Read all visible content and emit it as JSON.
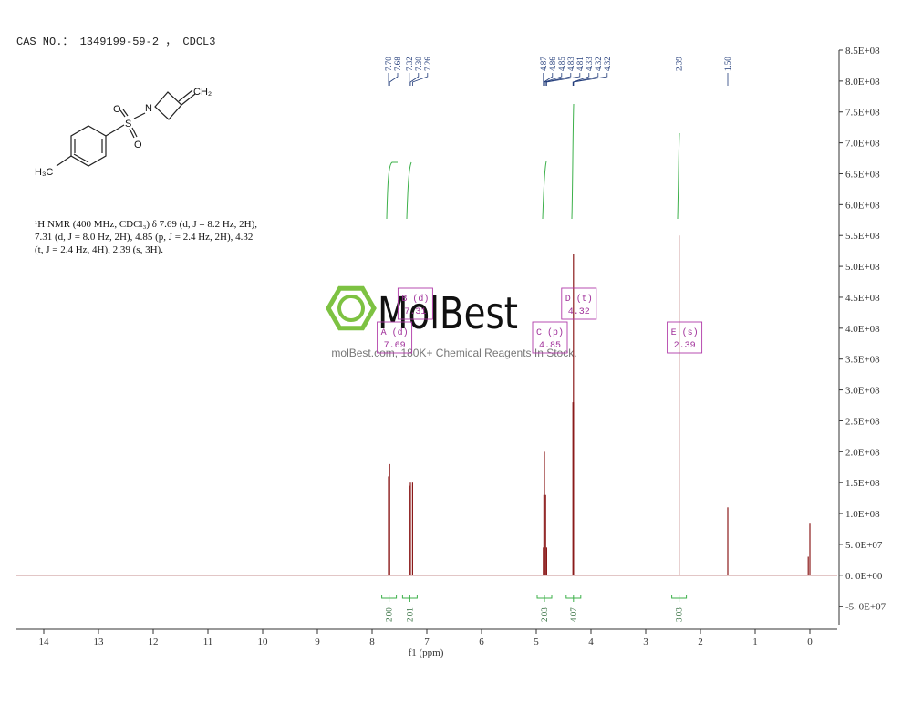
{
  "header": {
    "cas": "CAS NO.： 1349199-59-2 ， CDCL3"
  },
  "structure": {
    "atoms": [
      "O",
      "S",
      "O",
      "N",
      "CH₂",
      "H₃C"
    ]
  },
  "description": {
    "lines": [
      "¹H NMR (400 MHz, CDCl₃) δ 7.69 (d, J = 8.2 Hz, 2H),",
      "7.31 (d, J = 8.0 Hz, 2H), 4.85 (p, J = 2.4 Hz, 2H), 4.32",
      "(t, J = 2.4 Hz, 4H), 2.39 (s, 3H)."
    ]
  },
  "watermark": {
    "brand": "MolBest",
    "tagline": "molBest.com, 180K+ Chemical Reagents In Stock."
  },
  "chart_data": {
    "type": "nmr",
    "x_label": "f1 (ppm)",
    "xlim": [
      14.5,
      -0.5
    ],
    "xticks": [
      14,
      13,
      12,
      11,
      10,
      9,
      8,
      7,
      6,
      5,
      4,
      3,
      2,
      1,
      0
    ],
    "ylim": [
      -80000000,
      850000000
    ],
    "yticks": [
      {
        "value": -50000000,
        "label": "-5. 0E+07"
      },
      {
        "value": 0,
        "label": "0. 0E+00"
      },
      {
        "value": 50000000,
        "label": "5. 0E+07"
      },
      {
        "value": 100000000,
        "label": "1.0E+08"
      },
      {
        "value": 150000000,
        "label": "1.5E+08"
      },
      {
        "value": 200000000,
        "label": "2.0E+08"
      },
      {
        "value": 250000000,
        "label": "2.5E+08"
      },
      {
        "value": 300000000,
        "label": "3.0E+08"
      },
      {
        "value": 350000000,
        "label": "3.5E+08"
      },
      {
        "value": 400000000,
        "label": "4.0E+08"
      },
      {
        "value": 450000000,
        "label": "4.5E+08"
      },
      {
        "value": 500000000,
        "label": "5.0E+08"
      },
      {
        "value": 550000000,
        "label": "5.5E+08"
      },
      {
        "value": 600000000,
        "label": "6.0E+08"
      },
      {
        "value": 650000000,
        "label": "6.5E+08"
      },
      {
        "value": 700000000,
        "label": "7.0E+08"
      },
      {
        "value": 750000000,
        "label": "7.5E+08"
      },
      {
        "value": 800000000,
        "label": "8.0E+08"
      },
      {
        "value": 850000000,
        "label": "8.5E+08"
      }
    ],
    "color": "#8b1a1a",
    "peaks": {
      "x": [
        7.7,
        7.68,
        7.32,
        7.3,
        7.26,
        4.87,
        4.86,
        4.85,
        4.83,
        4.81,
        4.33,
        4.32,
        4.32,
        2.39,
        1.5,
        0.03,
        0.0
      ],
      "values": [
        160000000,
        180000000,
        145000000,
        150000000,
        150000000,
        45000000,
        130000000,
        200000000,
        130000000,
        45000000,
        280000000,
        520000000,
        280000000,
        550000000,
        110000000,
        30000000,
        85000000
      ],
      "x_labels": [
        "7.70",
        "7.68",
        "7.32",
        "7.30",
        "7.26",
        "4.87",
        "4.86",
        "4.85",
        "4.83",
        "4.81",
        "4.33",
        "4.32",
        "4.32",
        "2.39",
        "1.50",
        null,
        null
      ]
    },
    "integrals": {
      "x": [
        7.69,
        7.31,
        4.85,
        4.32,
        2.39
      ],
      "values": [
        2,
        2.01,
        2.03,
        4.07,
        3.03
      ],
      "value_labels": [
        "2.00",
        "2.01",
        "2.03",
        "4.07",
        "3.03"
      ]
    },
    "multiplets": [
      {
        "label": "A (d)",
        "shift": 7.69
      },
      {
        "label": "B (d)",
        "shift": 7.31
      },
      {
        "label": "C (p)",
        "shift": 4.85
      },
      {
        "label": "D (t)",
        "shift": 4.32
      },
      {
        "label": "E (s)",
        "shift": 2.39
      }
    ]
  }
}
